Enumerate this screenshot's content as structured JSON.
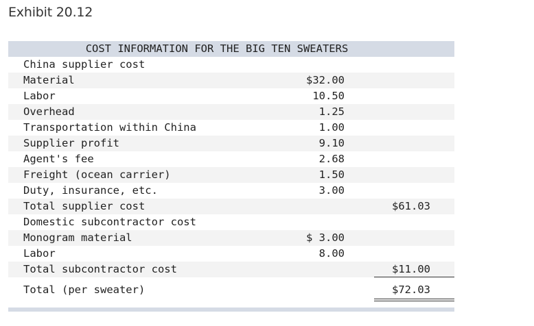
{
  "exhibit_title": "Exhibit 20.12",
  "table": {
    "header": "COST INFORMATION FOR THE BIG TEN SWEATERS",
    "rows": [
      {
        "label": "China supplier cost",
        "amount": "",
        "total": ""
      },
      {
        "label": "Material",
        "amount": "$32.00",
        "total": ""
      },
      {
        "label": "Labor",
        "amount": "10.50",
        "total": ""
      },
      {
        "label": "Overhead",
        "amount": "1.25",
        "total": ""
      },
      {
        "label": "Transportation within China",
        "amount": "1.00",
        "total": ""
      },
      {
        "label": "Supplier profit",
        "amount": "9.10",
        "total": ""
      },
      {
        "label": "Agent's fee",
        "amount": "2.68",
        "total": ""
      },
      {
        "label": "Freight (ocean carrier)",
        "amount": "1.50",
        "total": ""
      },
      {
        "label": "Duty, insurance, etc.",
        "amount": "3.00",
        "total": ""
      },
      {
        "label": "Total supplier cost",
        "amount": "",
        "total": "$61.03"
      },
      {
        "label": "Domestic subcontractor cost",
        "amount": "",
        "total": ""
      },
      {
        "label": "Monogram material",
        "amount": "$ 3.00",
        "total": ""
      },
      {
        "label": "Labor",
        "amount": "8.00",
        "total": ""
      },
      {
        "label": "Total subcontractor cost",
        "amount": "",
        "total": "$11.00"
      },
      {
        "label": "Total (per sweater)",
        "amount": "",
        "total": "$72.03"
      }
    ]
  }
}
